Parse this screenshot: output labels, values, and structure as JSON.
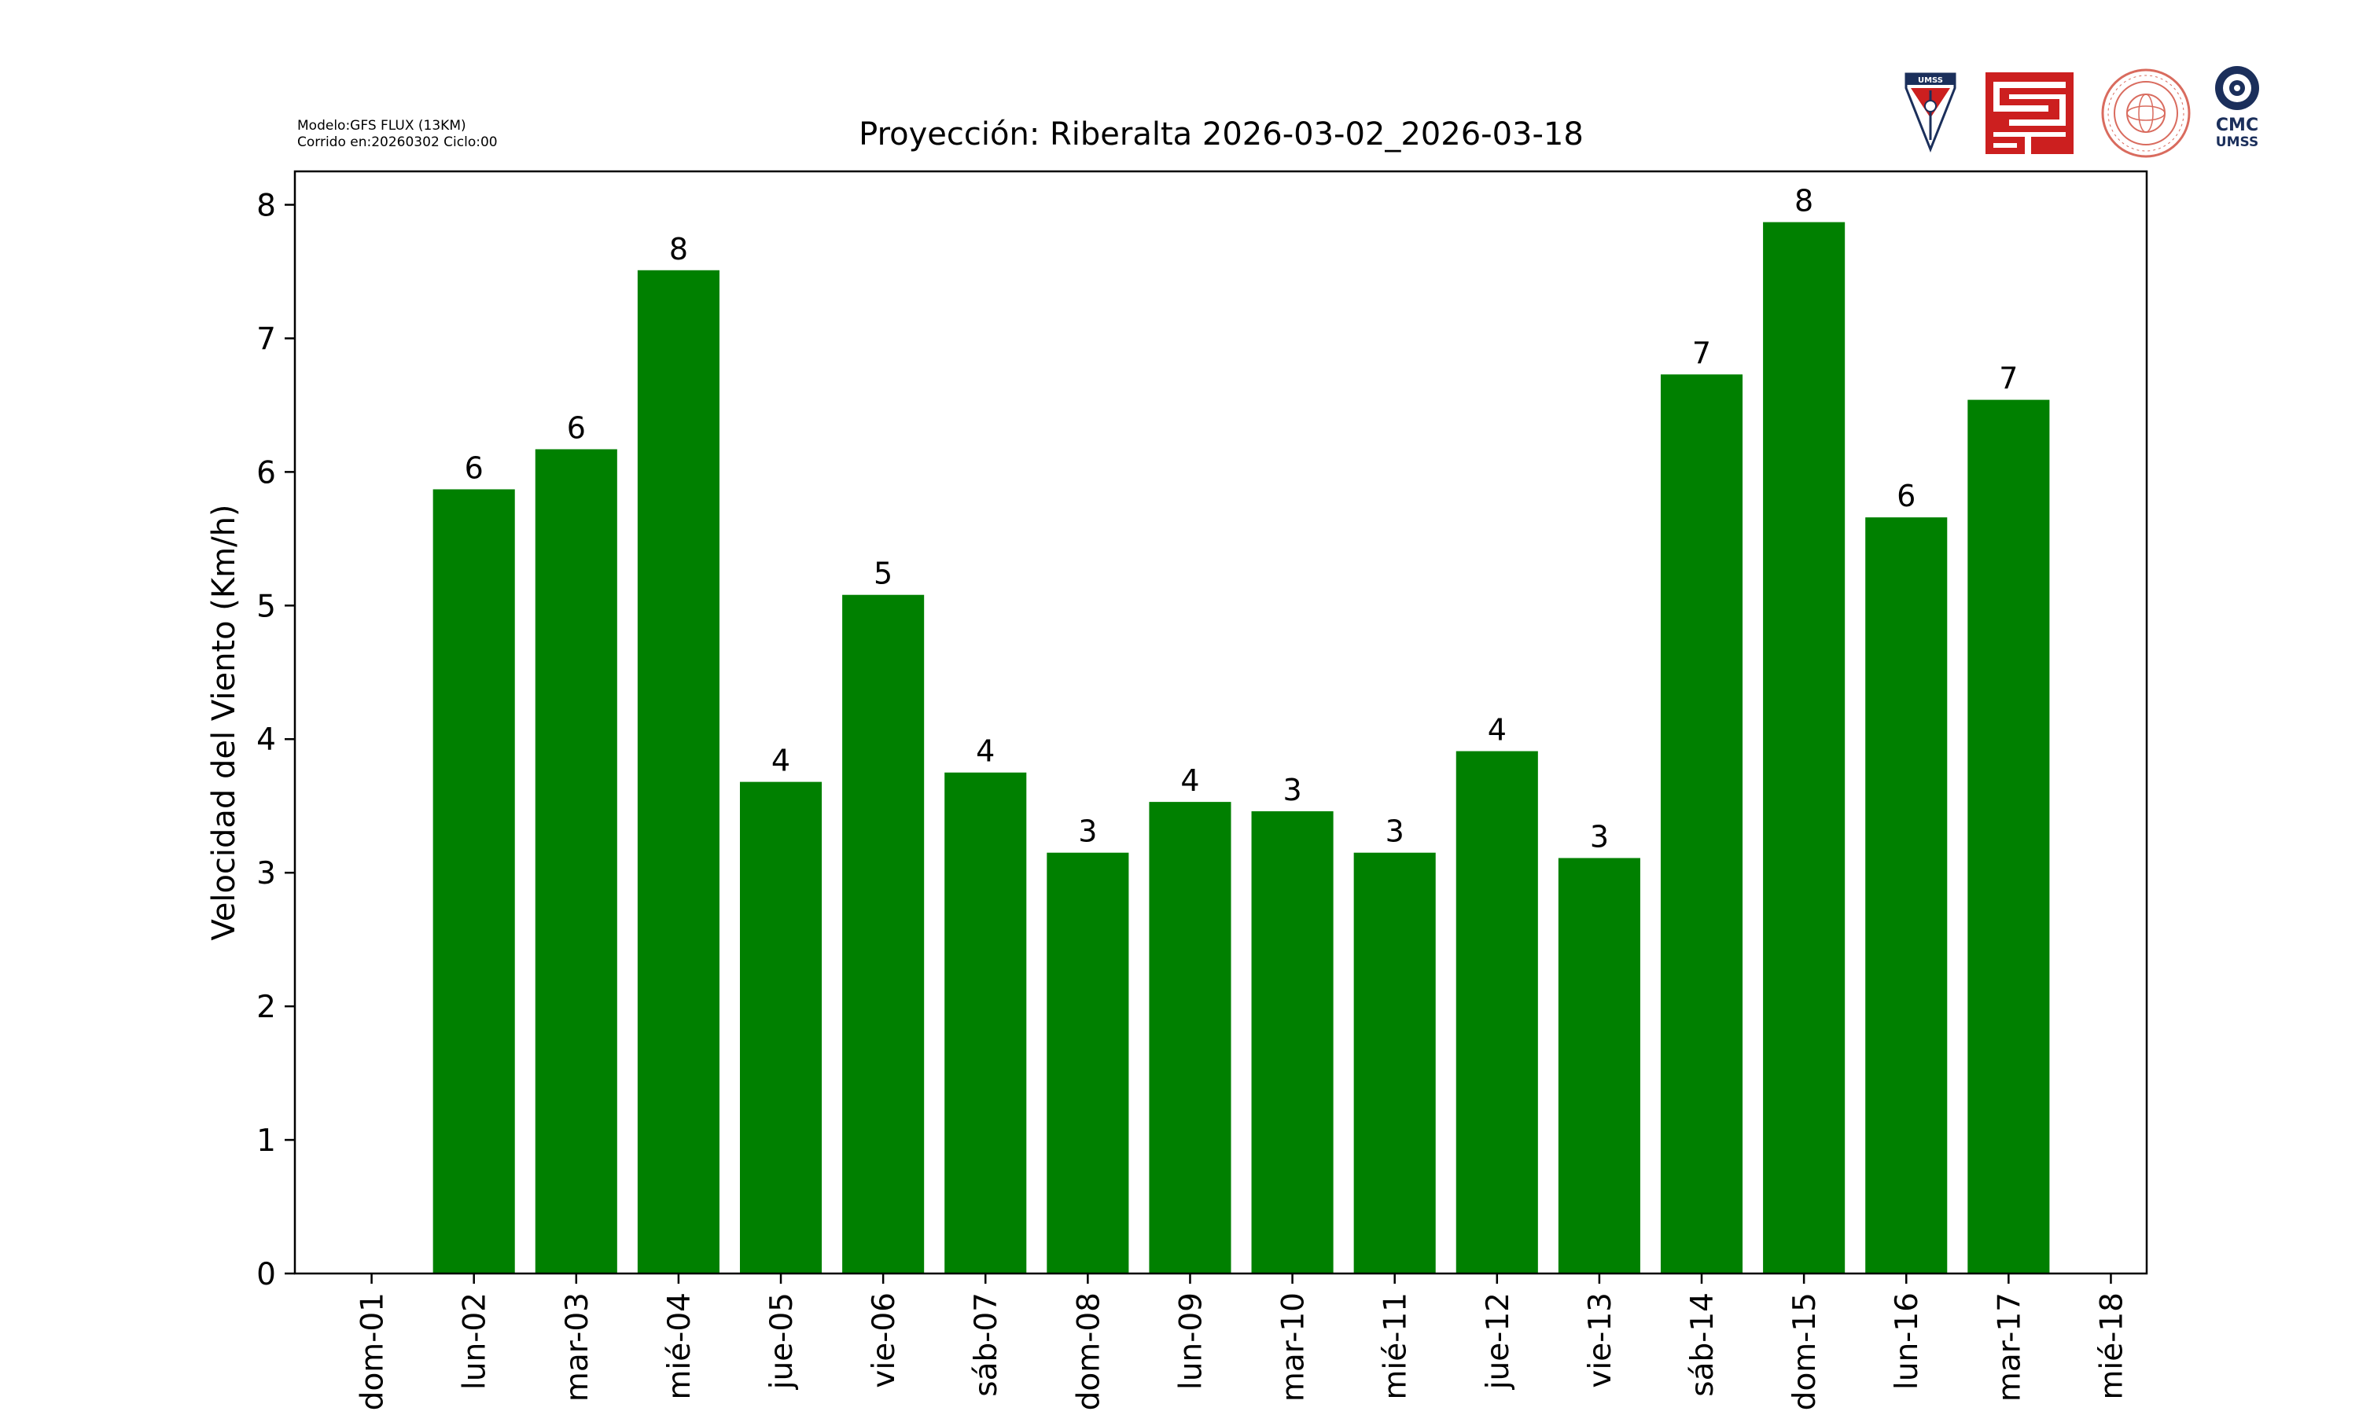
{
  "header": {
    "model_line": "Modelo:GFS FLUX (13KM)",
    "run_line": "Corrido en:20260302 Ciclo:00",
    "title": "Proyección: Riberalta  2026-03-02_2026-03-18"
  },
  "logos": {
    "umss_text": "UMSS",
    "cmc_text": "CMC",
    "cmc_sub_text": "UMSS"
  },
  "colors": {
    "bar": "#008000",
    "axis": "#000000",
    "background": "#ffffff",
    "logo_red": "#cc1f1f",
    "logo_navy": "#1b2f5b"
  },
  "chart_data": {
    "type": "bar",
    "title": "Proyección: Riberalta  2026-03-02_2026-03-18",
    "xlabel": "",
    "ylabel": "Velocidad del Viento (Km/h)",
    "ylim": [
      0,
      8.25
    ],
    "yticks": [
      0,
      1,
      2,
      3,
      4,
      5,
      6,
      7,
      8
    ],
    "xticks": [
      "dom-01",
      "lun-02",
      "mar-03",
      "mié-04",
      "jue-05",
      "vie-06",
      "sáb-07",
      "dom-08",
      "lun-09",
      "mar-10",
      "mié-11",
      "jue-12",
      "vie-13",
      "sáb-14",
      "dom-15",
      "lun-16",
      "mar-17",
      "mié-18"
    ],
    "categories": [
      "lun-02",
      "mar-03",
      "mié-04",
      "jue-05",
      "vie-06",
      "sáb-07",
      "dom-08",
      "lun-09",
      "mar-10",
      "mié-11",
      "jue-12",
      "vie-13",
      "sáb-14",
      "dom-15",
      "lun-16",
      "mar-17"
    ],
    "values": [
      5.87,
      6.17,
      7.51,
      3.68,
      5.08,
      3.75,
      3.15,
      3.53,
      3.46,
      3.15,
      3.91,
      3.11,
      6.73,
      7.87,
      5.66,
      6.54
    ],
    "data_labels": [
      "6",
      "6",
      "8",
      "4",
      "5",
      "4",
      "3",
      "4",
      "3",
      "3",
      "4",
      "3",
      "7",
      "8",
      "6",
      "7"
    ],
    "grid": false,
    "legend": "none"
  }
}
